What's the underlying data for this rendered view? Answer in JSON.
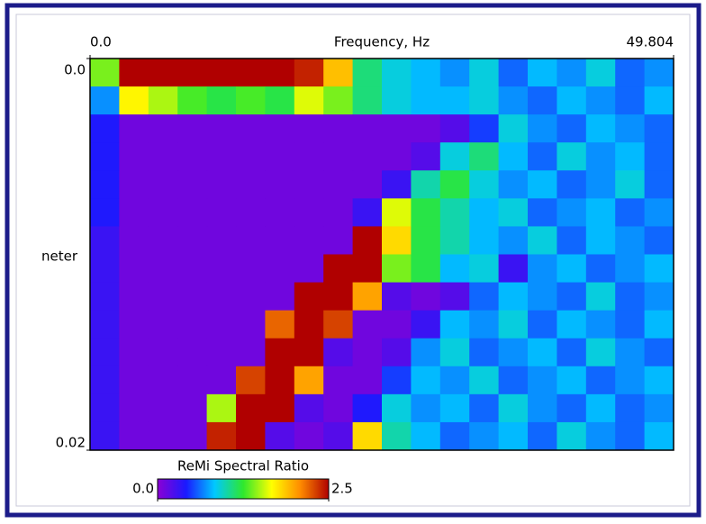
{
  "chart_data": {
    "type": "heatmap",
    "title": "Frequency, Hz",
    "y_label": "neter",
    "colorbar_title": "ReMi Spectral Ratio",
    "colormap": [
      "#8b00d4",
      "#1a1aff",
      "#00c8ff",
      "#2ee82e",
      "#ffff00",
      "#ff8c00",
      "#b00000"
    ],
    "xlim": [
      0,
      49.804
    ],
    "xticks": [
      {
        "value": 0,
        "label": "0.0"
      },
      49.804
    ],
    "ylim": [
      0,
      0.02
    ],
    "yticks": [
      {
        "value": 0,
        "label": "0.0"
      },
      0.02
    ],
    "clim": [
      0,
      2.5
    ],
    "cticks": [
      {
        "value": 0,
        "label": "0.0"
      },
      2.5
    ],
    "z": [
      [
        1.4,
        2.5,
        2.5,
        2.5,
        2.5,
        2.5,
        2.5,
        2.4,
        1.9,
        1.1,
        0.9,
        0.8,
        0.7,
        0.9,
        0.6,
        0.8,
        0.7,
        0.9,
        0.6,
        0.7
      ],
      [
        0.7,
        1.7,
        1.5,
        1.3,
        1.2,
        1.3,
        1.2,
        1.6,
        1.4,
        1.1,
        0.9,
        0.8,
        0.8,
        0.9,
        0.7,
        0.6,
        0.8,
        0.7,
        0.6,
        0.8
      ],
      [
        0.4,
        0.1,
        0.1,
        0.1,
        0.1,
        0.1,
        0.1,
        0.1,
        0.1,
        0.1,
        0.1,
        0.1,
        0.2,
        0.5,
        0.9,
        0.7,
        0.6,
        0.8,
        0.7,
        0.6
      ],
      [
        0.4,
        0.1,
        0.1,
        0.1,
        0.1,
        0.1,
        0.1,
        0.1,
        0.1,
        0.1,
        0.1,
        0.2,
        0.9,
        1.1,
        0.8,
        0.6,
        0.9,
        0.7,
        0.8,
        0.6
      ],
      [
        0.4,
        0.1,
        0.1,
        0.1,
        0.1,
        0.1,
        0.1,
        0.1,
        0.1,
        0.1,
        0.3,
        1.0,
        1.2,
        0.9,
        0.7,
        0.8,
        0.6,
        0.7,
        0.9,
        0.6
      ],
      [
        0.4,
        0.1,
        0.1,
        0.1,
        0.1,
        0.1,
        0.1,
        0.1,
        0.1,
        0.3,
        1.6,
        1.2,
        1.0,
        0.8,
        0.9,
        0.6,
        0.7,
        0.8,
        0.6,
        0.7
      ],
      [
        0.3,
        0.1,
        0.1,
        0.1,
        0.1,
        0.1,
        0.1,
        0.1,
        0.1,
        2.5,
        1.8,
        1.2,
        1.0,
        0.8,
        0.7,
        0.9,
        0.6,
        0.8,
        0.7,
        0.6
      ],
      [
        0.3,
        0.1,
        0.1,
        0.1,
        0.1,
        0.1,
        0.1,
        0.1,
        2.5,
        2.5,
        1.4,
        1.2,
        0.8,
        0.9,
        0.3,
        0.7,
        0.8,
        0.6,
        0.7,
        0.8
      ],
      [
        0.3,
        0.1,
        0.1,
        0.1,
        0.1,
        0.1,
        0.1,
        2.5,
        2.5,
        2.0,
        0.2,
        0.1,
        0.2,
        0.6,
        0.8,
        0.7,
        0.6,
        0.9,
        0.6,
        0.7
      ],
      [
        0.3,
        0.1,
        0.1,
        0.1,
        0.1,
        0.1,
        2.2,
        2.5,
        2.3,
        0.1,
        0.1,
        0.3,
        0.8,
        0.7,
        0.9,
        0.6,
        0.8,
        0.7,
        0.6,
        0.8
      ],
      [
        0.3,
        0.1,
        0.1,
        0.1,
        0.1,
        0.1,
        2.5,
        2.5,
        0.2,
        0.1,
        0.2,
        0.7,
        0.9,
        0.6,
        0.7,
        0.8,
        0.6,
        0.9,
        0.7,
        0.6
      ],
      [
        0.3,
        0.1,
        0.1,
        0.1,
        0.1,
        2.3,
        2.5,
        2.0,
        0.1,
        0.1,
        0.5,
        0.8,
        0.7,
        0.9,
        0.6,
        0.7,
        0.8,
        0.6,
        0.7,
        0.8
      ],
      [
        0.3,
        0.1,
        0.1,
        0.1,
        1.5,
        2.5,
        2.5,
        0.2,
        0.1,
        0.4,
        0.9,
        0.7,
        0.8,
        0.6,
        0.9,
        0.7,
        0.6,
        0.8,
        0.6,
        0.7
      ],
      [
        0.3,
        0.1,
        0.1,
        0.1,
        2.4,
        2.5,
        0.2,
        0.1,
        0.2,
        1.8,
        1.0,
        0.8,
        0.6,
        0.7,
        0.8,
        0.6,
        0.9,
        0.7,
        0.6,
        0.8
      ]
    ]
  }
}
